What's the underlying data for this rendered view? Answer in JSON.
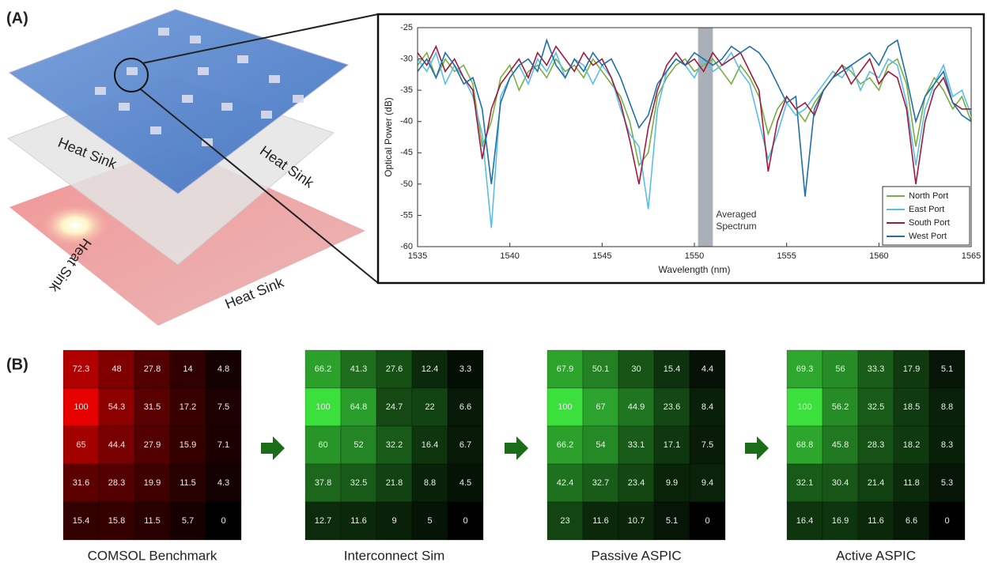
{
  "panel_labels": [
    "(A)",
    "(B)"
  ],
  "illustration_labels": [
    "Heat Sink",
    "Heat Sink",
    "Heat Sink",
    "Heat Sink"
  ],
  "chart_data": [
    {
      "type": "line",
      "xlabel": "Wavelength (nm)",
      "ylabel": "Optical Power (dB)",
      "xlim": [
        1535,
        1565
      ],
      "xticks": [
        1535,
        1540,
        1545,
        1550,
        1555,
        1560,
        1565
      ],
      "ylim": [
        -60,
        -25
      ],
      "yticks": [
        -60,
        -55,
        -50,
        -45,
        -40,
        -35,
        -30,
        -25
      ],
      "legend": "lower right",
      "grid": false,
      "band": [
        1550.2,
        1551
      ],
      "band_color": "#a9b0b8",
      "annotation": "Averaged Spectrum",
      "x": [
        1535,
        1535.5,
        1536,
        1536.5,
        1537,
        1537.5,
        1538,
        1538.5,
        1539,
        1539.5,
        1540,
        1540.5,
        1541,
        1541.5,
        1542,
        1542.5,
        1543,
        1543.5,
        1544,
        1544.5,
        1545,
        1545.5,
        1546,
        1546.5,
        1547,
        1547.5,
        1548,
        1548.5,
        1549,
        1549.5,
        1550,
        1550.5,
        1551,
        1551.5,
        1552,
        1552.5,
        1553,
        1553.5,
        1554,
        1554.5,
        1555,
        1555.5,
        1556,
        1556.5,
        1557,
        1557.5,
        1558,
        1558.5,
        1559,
        1559.5,
        1560,
        1560.5,
        1561,
        1561.5,
        1562,
        1562.5,
        1563,
        1563.5,
        1564,
        1564.5,
        1565
      ],
      "series": [
        {
          "name": "North Port",
          "color": "#77b040",
          "values": [
            -31,
            -29,
            -33,
            -30,
            -32,
            -31,
            -34,
            -44,
            -40,
            -33,
            -31,
            -35,
            -32,
            -31,
            -33,
            -30,
            -32,
            -31,
            -33,
            -30,
            -32,
            -34,
            -36,
            -40,
            -47,
            -45,
            -36,
            -33,
            -31,
            -30,
            -32,
            -31,
            -30,
            -32,
            -34,
            -31,
            -33,
            -36,
            -42,
            -38,
            -36,
            -38,
            -40,
            -37,
            -35,
            -33,
            -31,
            -32,
            -34,
            -33,
            -35,
            -31,
            -30,
            -34,
            -44,
            -36,
            -33,
            -35,
            -38,
            -36,
            -40
          ]
        },
        {
          "name": "East Port",
          "color": "#5bbde8",
          "values": [
            -30,
            -32,
            -29,
            -34,
            -31,
            -33,
            -36,
            -42,
            -57,
            -36,
            -33,
            -31,
            -34,
            -30,
            -32,
            -29,
            -33,
            -30,
            -31,
            -34,
            -31,
            -33,
            -38,
            -42,
            -44,
            -54,
            -38,
            -32,
            -30,
            -31,
            -33,
            -30,
            -32,
            -31,
            -29,
            -32,
            -34,
            -40,
            -46,
            -42,
            -37,
            -39,
            -38,
            -36,
            -34,
            -32,
            -33,
            -31,
            -35,
            -32,
            -33,
            -30,
            -31,
            -37,
            -47,
            -38,
            -34,
            -31,
            -36,
            -35,
            -39
          ]
        },
        {
          "name": "South Port",
          "color": "#9e1b3c",
          "values": [
            -29,
            -31,
            -28,
            -32,
            -30,
            -33,
            -35,
            -46,
            -38,
            -34,
            -32,
            -30,
            -33,
            -29,
            -31,
            -28,
            -30,
            -32,
            -29,
            -31,
            -30,
            -33,
            -37,
            -43,
            -50,
            -41,
            -35,
            -31,
            -29,
            -31,
            -30,
            -32,
            -29,
            -31,
            -30,
            -29,
            -32,
            -35,
            -48,
            -40,
            -36,
            -38,
            -37,
            -39,
            -35,
            -33,
            -31,
            -34,
            -32,
            -30,
            -34,
            -32,
            -33,
            -38,
            -50,
            -40,
            -35,
            -33,
            -37,
            -38,
            -38
          ]
        },
        {
          "name": "West Port",
          "color": "#1f6fa8",
          "values": [
            -32,
            -30,
            -33,
            -29,
            -31,
            -34,
            -33,
            -38,
            -50,
            -37,
            -33,
            -31,
            -30,
            -32,
            -27,
            -31,
            -33,
            -30,
            -32,
            -29,
            -31,
            -30,
            -33,
            -37,
            -41,
            -39,
            -34,
            -32,
            -30,
            -31,
            -29,
            -30,
            -31,
            -30,
            -28,
            -29,
            -28,
            -29,
            -31,
            -34,
            -37,
            -36,
            -52,
            -38,
            -35,
            -33,
            -32,
            -31,
            -30,
            -29,
            -31,
            -28,
            -27,
            -33,
            -40,
            -36,
            -34,
            -32,
            -37,
            -39,
            -40
          ]
        }
      ]
    },
    {
      "type": "heatmap",
      "title": "COMSOL Benchmark",
      "color": "#e60000",
      "values": [
        [
          72.3,
          48,
          27.8,
          14,
          4.8
        ],
        [
          100,
          54.3,
          31.5,
          17.2,
          7.5
        ],
        [
          65,
          44.4,
          27.9,
          15.9,
          7.1
        ],
        [
          31.6,
          28.3,
          19.9,
          11.5,
          4.3
        ],
        [
          15.4,
          15.8,
          11.5,
          5.7,
          0
        ]
      ]
    },
    {
      "type": "heatmap",
      "title": "Interconnect Sim",
      "color": "#3ce03c",
      "values": [
        [
          66.2,
          41.3,
          27.6,
          12.4,
          3.3
        ],
        [
          100,
          64.8,
          24.7,
          22,
          6.6
        ],
        [
          60,
          52,
          32.2,
          16.4,
          6.7
        ],
        [
          37.8,
          32.5,
          21.8,
          8.8,
          4.5
        ],
        [
          12.7,
          11.6,
          9,
          5,
          0
        ]
      ]
    },
    {
      "type": "heatmap",
      "title": "Passive ASPIC",
      "color": "#3ce03c",
      "values": [
        [
          67.9,
          50.1,
          30,
          15.4,
          4.4
        ],
        [
          100,
          67,
          44.9,
          23.6,
          8.4
        ],
        [
          66.2,
          54,
          33.1,
          17.1,
          7.5
        ],
        [
          42.4,
          32.7,
          23.4,
          9.9,
          9.4
        ],
        [
          23,
          11.6,
          10.7,
          5.1,
          0
        ]
      ]
    },
    {
      "type": "heatmap",
      "title": "Active ASPIC",
      "color": "#3ce03c",
      "values": [
        [
          69.3,
          56,
          33.3,
          17.9,
          5.1
        ],
        [
          100,
          56.2,
          32.5,
          18.5,
          8.8
        ],
        [
          68.8,
          45.8,
          28.3,
          18.2,
          8.3
        ],
        [
          32.1,
          30.4,
          21.4,
          11.8,
          5.3
        ],
        [
          16.4,
          16.9,
          11.6,
          6.6,
          0
        ]
      ]
    }
  ]
}
